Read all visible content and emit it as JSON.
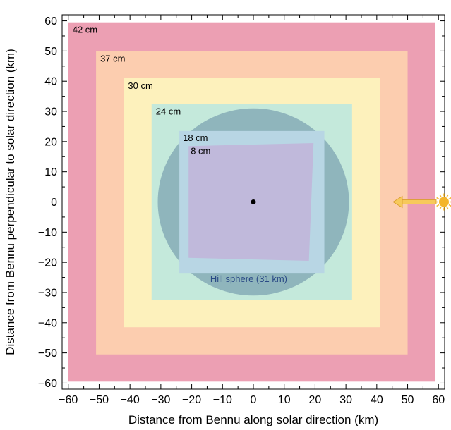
{
  "chart_data": {
    "type": "area",
    "title": "",
    "xlabel": "Distance from Bennu along solar direction (km)",
    "ylabel": "Distance from Bennu perpendicular to solar direction (km)",
    "xlim": [
      -62,
      62
    ],
    "ylim": [
      -62,
      62
    ],
    "xticks": [
      -60,
      -50,
      -40,
      -30,
      -20,
      -10,
      0,
      10,
      20,
      30,
      40,
      50,
      60
    ],
    "yticks": [
      -60,
      -50,
      -40,
      -30,
      -20,
      -10,
      0,
      10,
      20,
      30,
      40,
      50,
      60
    ],
    "xtick_labels": [
      "−60",
      "−50",
      "−40",
      "−30",
      "−20",
      "−10",
      "0",
      "10",
      "20",
      "30",
      "40",
      "50",
      "60"
    ],
    "ytick_labels": [
      "−60",
      "−50",
      "−40",
      "−30",
      "−20",
      "−10",
      "0",
      "10",
      "20",
      "30",
      "40",
      "50",
      "60"
    ],
    "grid": false,
    "regions": [
      {
        "label": "42 cm",
        "color": "#ec9fb3",
        "x": [
          -60,
          59
        ],
        "y": [
          -59.5,
          59.5
        ]
      },
      {
        "label": "37 cm",
        "color": "#fccdaf",
        "x": [
          -51,
          50
        ],
        "y": [
          -50.5,
          50
        ]
      },
      {
        "label": "30 cm",
        "color": "#fdf1bc",
        "x": [
          -42,
          41
        ],
        "y": [
          -41.5,
          41
        ]
      },
      {
        "label": "24 cm",
        "color": "#c4e9db",
        "x": [
          -33,
          32
        ],
        "y": [
          -32.5,
          32.5
        ]
      }
    ],
    "hill_sphere": {
      "label": "Hill sphere (31 km)",
      "radius_km": 31,
      "color": "#8fb5bc",
      "label_color": "#2a4a86"
    },
    "region_18cm": {
      "label": "18 cm",
      "color": "#b8d6e4",
      "x": [
        -24,
        23
      ],
      "y": [
        -23.5,
        23.5
      ]
    },
    "region_8cm": {
      "label": "8 cm",
      "color": "#c0b9db",
      "corners": [
        [
          -21,
          18.5
        ],
        [
          19.5,
          19.5
        ],
        [
          18,
          -19.5
        ],
        [
          -21,
          -18.5
        ]
      ]
    },
    "bennu": {
      "x": 0,
      "y": 0
    },
    "sun_direction": {
      "arrow_color": "#f7c95b",
      "sun_color": "#f4b52b"
    }
  }
}
